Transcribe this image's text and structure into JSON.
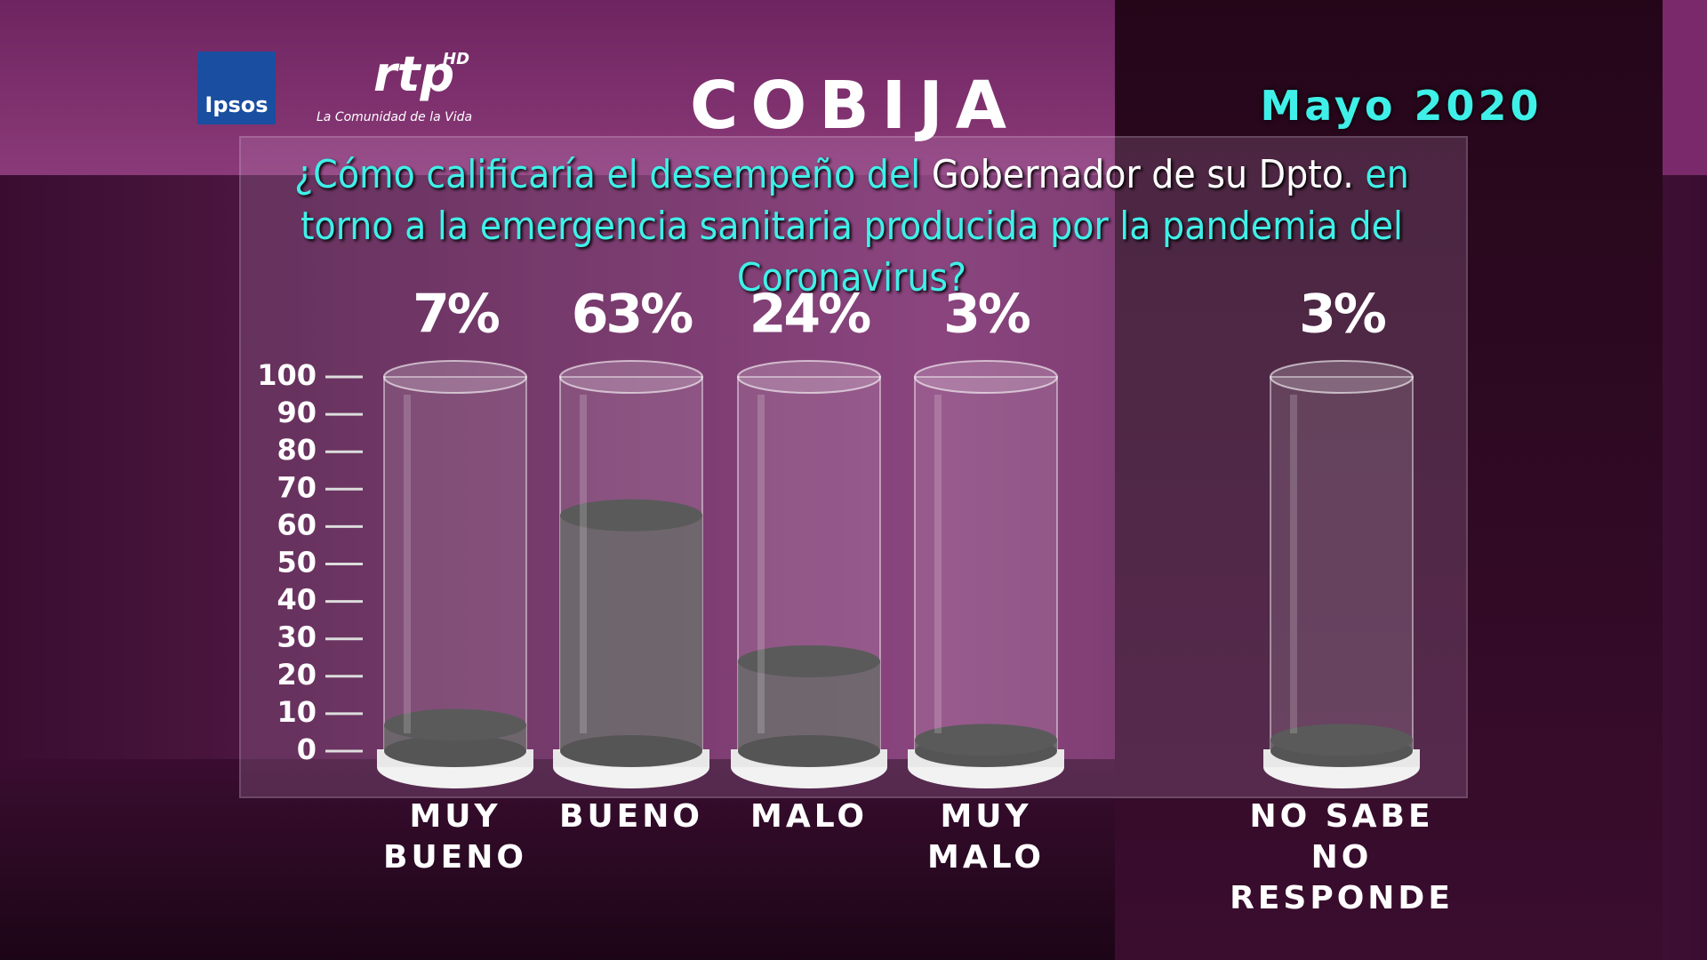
{
  "logos": {
    "ipsos": "Ipsos",
    "rtp": "rtp",
    "rtp_hd": "HD",
    "rtp_tagline": "La Comunidad de la Vida"
  },
  "chart_data": {
    "type": "cylinder",
    "title": "COBIJA",
    "subtitle": "Mayo 2020",
    "question": [
      "¿Cómo calificaría el desempeño del ",
      "Gobernador de su Dpto.",
      " en torno a la emergencia sanitaria producida por la pandemia del Coronavirus?"
    ],
    "categories": [
      "MUY\nBUENO",
      "BUENO",
      "MALO",
      "MUY\nMALO",
      "NO SABE\nNO RESPONDE"
    ],
    "values": [
      7,
      63,
      24,
      3,
      3
    ],
    "value_labels": [
      "7%",
      "63%",
      "24%",
      "3%",
      "3%"
    ],
    "color": "#6a6a6a",
    "ylim": [
      0,
      100
    ],
    "yticks": [
      0,
      10,
      20,
      30,
      40,
      50,
      60,
      70,
      80,
      90,
      100
    ]
  }
}
